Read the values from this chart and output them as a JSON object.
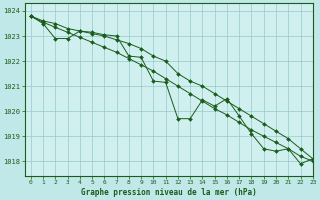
{
  "title": "Graphe pression niveau de la mer (hPa)",
  "background_color": "#c0e8e8",
  "plot_bg_color": "#d0f0f0",
  "grid_color": "#98c8c8",
  "line_color": "#1a5c1a",
  "xlim": [
    -0.5,
    23
  ],
  "ylim": [
    1017.4,
    1024.3
  ],
  "yticks": [
    1018,
    1019,
    1020,
    1021,
    1022,
    1023,
    1024
  ],
  "xticks": [
    0,
    1,
    2,
    3,
    4,
    5,
    6,
    7,
    8,
    9,
    10,
    11,
    12,
    13,
    14,
    15,
    16,
    17,
    18,
    19,
    20,
    21,
    22,
    23
  ],
  "series_smooth1": [
    1023.8,
    1023.6,
    1023.5,
    1023.3,
    1023.2,
    1023.1,
    1023.0,
    1022.85,
    1022.7,
    1022.5,
    1022.2,
    1022.0,
    1021.5,
    1021.2,
    1021.0,
    1020.7,
    1020.4,
    1020.1,
    1019.8,
    1019.5,
    1019.2,
    1018.9,
    1018.5,
    1018.1
  ],
  "series_smooth2": [
    1023.8,
    1023.55,
    1023.35,
    1023.15,
    1022.95,
    1022.75,
    1022.55,
    1022.35,
    1022.1,
    1021.85,
    1021.6,
    1021.3,
    1021.0,
    1020.7,
    1020.4,
    1020.1,
    1019.85,
    1019.55,
    1019.25,
    1019.0,
    1018.75,
    1018.5,
    1018.2,
    1018.0
  ],
  "series_jagged": [
    1023.8,
    1023.5,
    1022.9,
    1022.9,
    1023.2,
    1023.15,
    1023.05,
    1023.0,
    1022.2,
    1022.15,
    1021.2,
    1021.15,
    1019.7,
    1019.7,
    1020.45,
    1020.2,
    1020.5,
    1019.8,
    1019.1,
    1018.5,
    1018.4,
    1018.5,
    1017.9,
    1018.1
  ]
}
